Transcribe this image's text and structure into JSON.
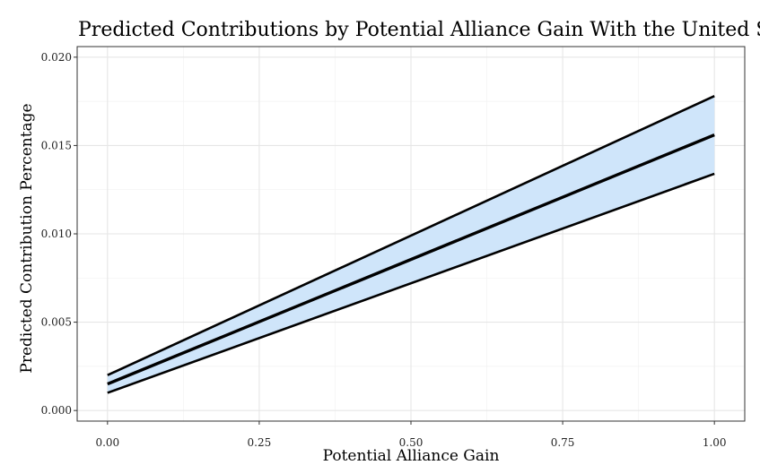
{
  "chart_data": {
    "type": "line",
    "title": "Predicted Contributions by Potential Alliance Gain With the United States",
    "xlabel": "Potential Alliance Gain",
    "ylabel": "Predicted Contribution Percentage",
    "xlim": [
      -0.05,
      1.05
    ],
    "ylim": [
      -0.0006,
      0.0206
    ],
    "x_ticks": [
      0.0,
      0.25,
      0.5,
      0.75,
      1.0
    ],
    "x_tick_labels": [
      "0.00",
      "0.25",
      "0.50",
      "0.75",
      "1.00"
    ],
    "y_ticks": [
      0.0,
      0.005,
      0.01,
      0.015,
      0.02
    ],
    "y_tick_labels": [
      "0.000",
      "0.005",
      "0.010",
      "0.015",
      "0.020"
    ],
    "grid": true,
    "legend": "none",
    "x": [
      0.0,
      1.0
    ],
    "series": [
      {
        "role": "estimate",
        "values": [
          0.0015,
          0.0156
        ]
      },
      {
        "role": "upper",
        "values": [
          0.002,
          0.0178
        ]
      },
      {
        "role": "lower",
        "values": [
          0.001,
          0.0134
        ]
      }
    ],
    "ribbon_color": "#cfe5fa",
    "line_color": "#000000"
  }
}
